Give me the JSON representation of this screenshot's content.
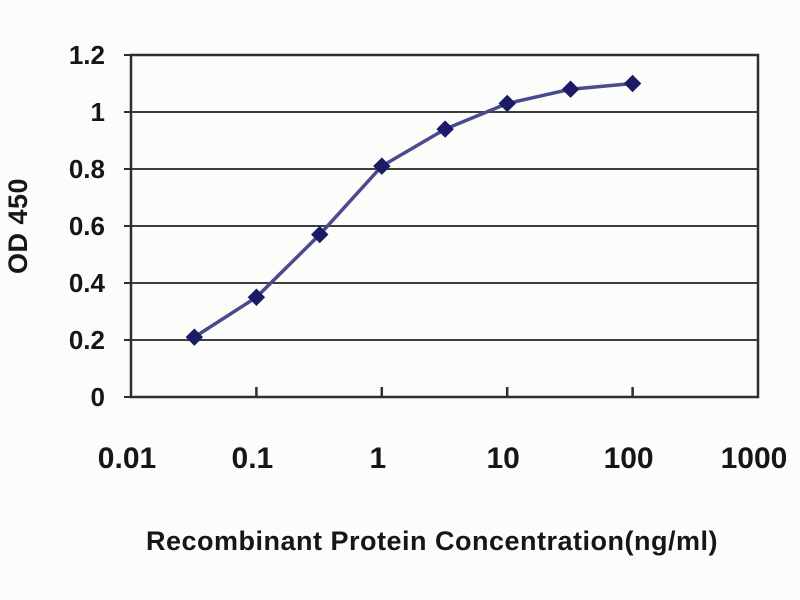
{
  "chart_data": {
    "type": "line",
    "title": "",
    "xlabel": "Recombinant Protein Concentration(ng/ml)",
    "ylabel": "OD 450",
    "x_scale": "log",
    "xlim": [
      0.01,
      1000
    ],
    "ylim": [
      0,
      1.2
    ],
    "x_ticks": [
      0.01,
      0.1,
      1,
      10,
      100,
      1000
    ],
    "x_tick_labels": [
      "0.01",
      "0.1",
      "1",
      "10",
      "100",
      "1000"
    ],
    "y_ticks": [
      0,
      0.2,
      0.4,
      0.6,
      0.8,
      1,
      1.2
    ],
    "y_tick_labels": [
      "0",
      "0.2",
      "0.4",
      "0.6",
      "0.8",
      "1",
      "1.2"
    ],
    "grid": "horizontal",
    "legend": "none",
    "series": [
      {
        "name": "OD 450",
        "marker": "diamond",
        "x": [
          0.032,
          0.1,
          0.32,
          1,
          3.2,
          10,
          32,
          100
        ],
        "y": [
          0.21,
          0.35,
          0.57,
          0.81,
          0.94,
          1.03,
          1.08,
          1.1
        ]
      }
    ],
    "colors": {
      "background": "#fcfcfa",
      "grid": "#3d3d3d",
      "axis_border": "#2e2e2e",
      "line": "#4a4a8f",
      "marker": "#1b1b66",
      "text": "#161616"
    }
  }
}
